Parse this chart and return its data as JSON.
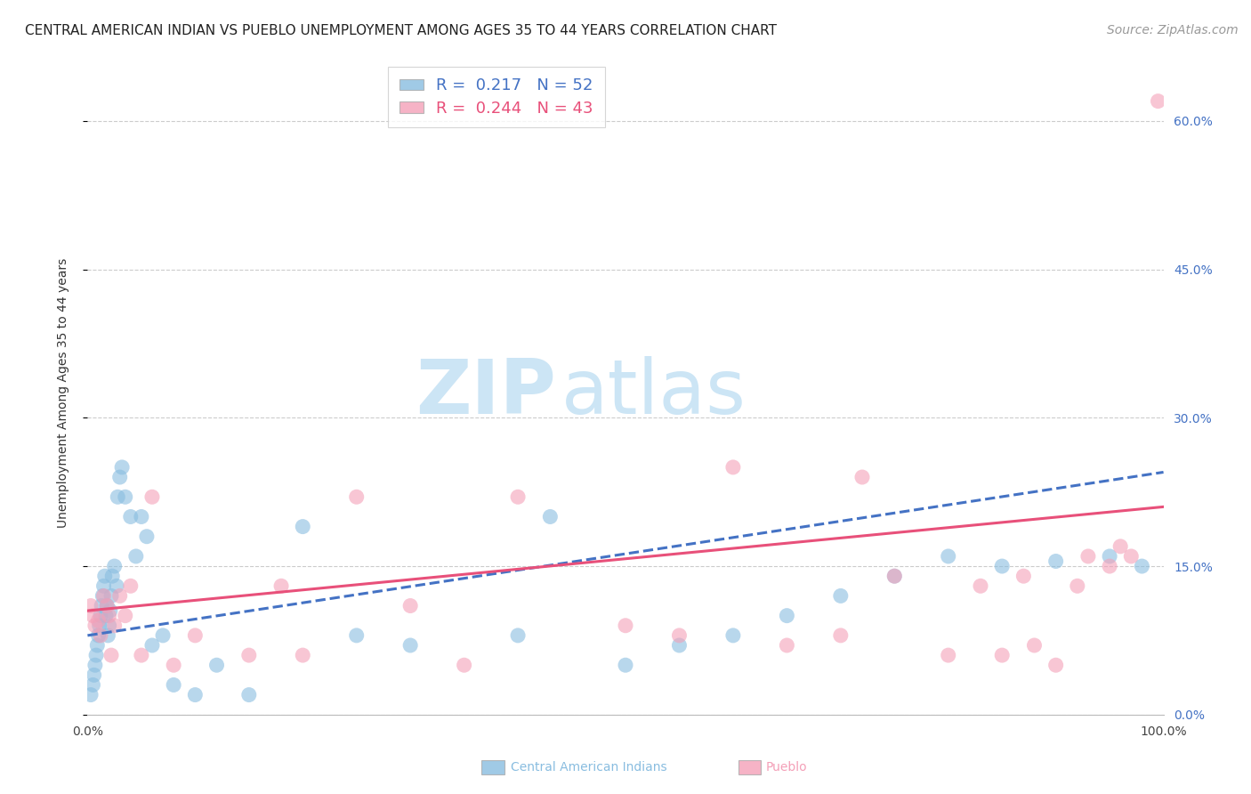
{
  "title": "CENTRAL AMERICAN INDIAN VS PUEBLO UNEMPLOYMENT AMONG AGES 35 TO 44 YEARS CORRELATION CHART",
  "source": "Source: ZipAtlas.com",
  "ylabel": "Unemployment Among Ages 35 to 44 years",
  "ytick_values": [
    0.0,
    15.0,
    30.0,
    45.0,
    60.0
  ],
  "xlim": [
    0.0,
    100.0
  ],
  "ylim": [
    0.0,
    65.0
  ],
  "legend_r_blue": "0.217",
  "legend_n_blue": "52",
  "legend_r_pink": "0.244",
  "legend_n_pink": "43",
  "blue_color": "#89bde0",
  "pink_color": "#f4a0b8",
  "blue_line_color": "#4472c4",
  "pink_line_color": "#e8507a",
  "watermark_zip": "ZIP",
  "watermark_atlas": "atlas",
  "watermark_color": "#cce5f5",
  "blue_scatter_x": [
    0.3,
    0.5,
    0.6,
    0.7,
    0.8,
    0.9,
    1.0,
    1.1,
    1.2,
    1.3,
    1.4,
    1.5,
    1.6,
    1.7,
    1.8,
    1.9,
    2.0,
    2.1,
    2.2,
    2.3,
    2.5,
    2.7,
    2.8,
    3.0,
    3.2,
    3.5,
    4.0,
    4.5,
    5.0,
    5.5,
    6.0,
    7.0,
    8.0,
    10.0,
    12.0,
    15.0,
    20.0,
    25.0,
    30.0,
    40.0,
    43.0,
    50.0,
    55.0,
    60.0,
    65.0,
    70.0,
    75.0,
    80.0,
    85.0,
    90.0,
    95.0,
    98.0
  ],
  "blue_scatter_y": [
    2.0,
    3.0,
    4.0,
    5.0,
    6.0,
    7.0,
    8.0,
    9.0,
    10.0,
    11.0,
    12.0,
    13.0,
    14.0,
    10.0,
    11.0,
    8.0,
    9.0,
    10.5,
    12.0,
    14.0,
    15.0,
    13.0,
    22.0,
    24.0,
    25.0,
    22.0,
    20.0,
    16.0,
    20.0,
    18.0,
    7.0,
    8.0,
    3.0,
    2.0,
    5.0,
    2.0,
    19.0,
    8.0,
    7.0,
    8.0,
    20.0,
    5.0,
    7.0,
    8.0,
    10.0,
    12.0,
    14.0,
    16.0,
    15.0,
    15.5,
    16.0,
    15.0
  ],
  "pink_scatter_x": [
    0.3,
    0.5,
    0.7,
    1.0,
    1.2,
    1.5,
    1.8,
    2.0,
    2.2,
    2.5,
    3.0,
    3.5,
    4.0,
    5.0,
    6.0,
    8.0,
    10.0,
    15.0,
    18.0,
    20.0,
    25.0,
    30.0,
    35.0,
    40.0,
    50.0,
    55.0,
    60.0,
    65.0,
    70.0,
    72.0,
    75.0,
    80.0,
    83.0,
    85.0,
    87.0,
    88.0,
    90.0,
    92.0,
    93.0,
    95.0,
    96.0,
    97.0,
    99.5
  ],
  "pink_scatter_y": [
    11.0,
    10.0,
    9.0,
    9.5,
    8.0,
    12.0,
    11.0,
    10.0,
    6.0,
    9.0,
    12.0,
    10.0,
    13.0,
    6.0,
    22.0,
    5.0,
    8.0,
    6.0,
    13.0,
    6.0,
    22.0,
    11.0,
    5.0,
    22.0,
    9.0,
    8.0,
    25.0,
    7.0,
    8.0,
    24.0,
    14.0,
    6.0,
    13.0,
    6.0,
    14.0,
    7.0,
    5.0,
    13.0,
    16.0,
    15.0,
    17.0,
    16.0,
    62.0
  ],
  "blue_trend_intercept": 8.0,
  "blue_trend_slope": 0.165,
  "pink_trend_intercept": 10.5,
  "pink_trend_slope": 0.105,
  "title_fontsize": 11,
  "axis_label_fontsize": 10,
  "tick_fontsize": 10,
  "source_fontsize": 10,
  "legend_fontsize": 13,
  "background_color": "#ffffff",
  "grid_color": "#cccccc",
  "title_color": "#222222",
  "right_tick_color": "#4472c4",
  "bottom_label_color_blue": "#89bde0",
  "bottom_label_color_pink": "#f4a0b8"
}
